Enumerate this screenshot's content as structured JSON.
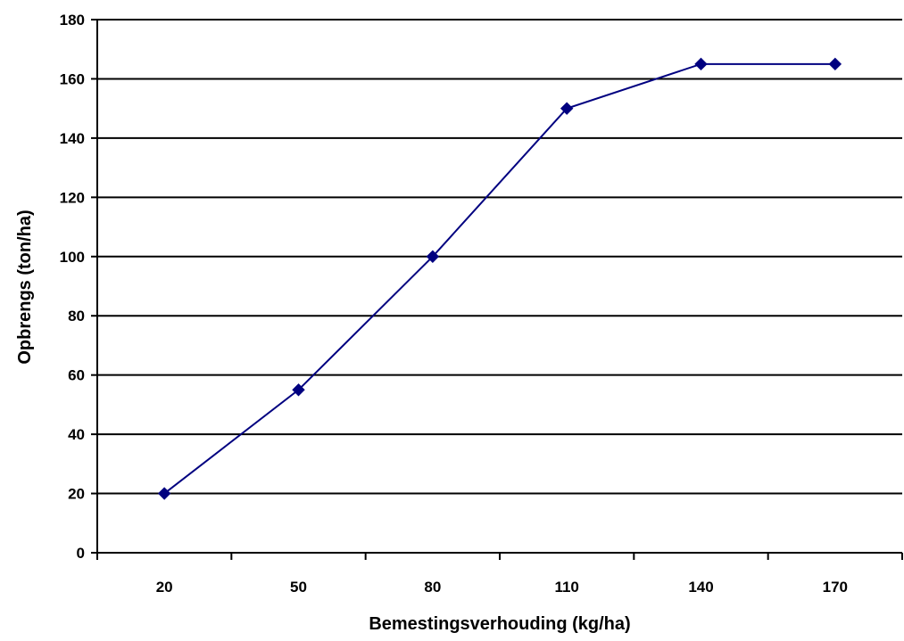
{
  "chart_data": {
    "type": "line",
    "title": "",
    "xlabel": "Bemestingsverhouding (kg/ha)",
    "ylabel": "Opbrengs (ton/ha)",
    "categories": [
      "20",
      "50",
      "80",
      "110",
      "140",
      "170"
    ],
    "series": [
      {
        "values": [
          20,
          55,
          100,
          150,
          165,
          165
        ]
      }
    ],
    "ylim": [
      0,
      180
    ],
    "yticks": [
      "0",
      "20",
      "40",
      "60",
      "80",
      "100",
      "120",
      "140",
      "160",
      "180"
    ],
    "grid": true,
    "legend": "none",
    "colors": {
      "line": "#000080",
      "marker": "#000080",
      "grid": "#000000"
    },
    "marker": "diamond"
  }
}
